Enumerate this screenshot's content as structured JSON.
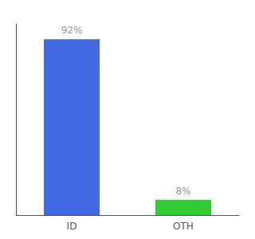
{
  "chart_data": {
    "type": "bar",
    "categories": [
      "ID",
      "OTH"
    ],
    "values": [
      92,
      8
    ],
    "value_labels": [
      "92%",
      "8%"
    ],
    "colors": [
      "#4169e1",
      "#32cd32"
    ],
    "ylim": [
      0,
      100
    ],
    "grid": false,
    "data_labels": true,
    "tick_labels": "x"
  }
}
